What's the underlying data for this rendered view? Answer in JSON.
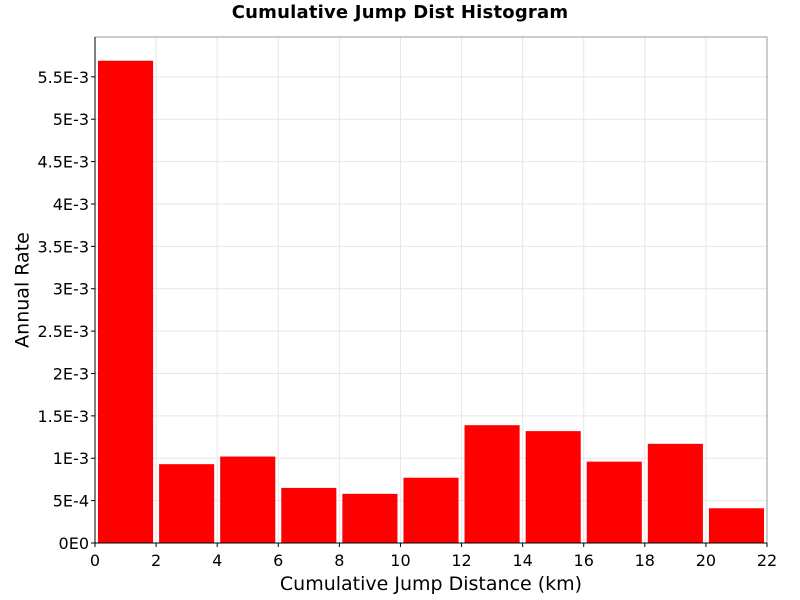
{
  "chart_data": {
    "type": "bar",
    "title": "Cumulative Jump Dist Histogram",
    "xlabel": "Cumulative Jump Distance (km)",
    "ylabel": "Annual Rate",
    "xlim": [
      0,
      22
    ],
    "ylim": [
      0,
      0.00597
    ],
    "grid": true,
    "legend": "none",
    "bar_color": "#ff0000",
    "bin_width": 2,
    "bins": [
      {
        "x_start": 0,
        "value": 0.00569
      },
      {
        "x_start": 2,
        "value": 0.00093
      },
      {
        "x_start": 4,
        "value": 0.00102
      },
      {
        "x_start": 6,
        "value": 0.00065
      },
      {
        "x_start": 8,
        "value": 0.00058
      },
      {
        "x_start": 10,
        "value": 0.00077
      },
      {
        "x_start": 12,
        "value": 0.00139
      },
      {
        "x_start": 14,
        "value": 0.00132
      },
      {
        "x_start": 16,
        "value": 0.00096
      },
      {
        "x_start": 18,
        "value": 0.00117
      },
      {
        "x_start": 20,
        "value": 0.00041
      }
    ],
    "x_ticks": [
      {
        "value": 0,
        "label": "0"
      },
      {
        "value": 2,
        "label": "2"
      },
      {
        "value": 4,
        "label": "4"
      },
      {
        "value": 6,
        "label": "6"
      },
      {
        "value": 8,
        "label": "8"
      },
      {
        "value": 10,
        "label": "10"
      },
      {
        "value": 12,
        "label": "12"
      },
      {
        "value": 14,
        "label": "14"
      },
      {
        "value": 16,
        "label": "16"
      },
      {
        "value": 18,
        "label": "18"
      },
      {
        "value": 20,
        "label": "20"
      },
      {
        "value": 22,
        "label": "22"
      }
    ],
    "y_ticks": [
      {
        "value": 0,
        "label": "0E0"
      },
      {
        "value": 0.0005,
        "label": "5E-4"
      },
      {
        "value": 0.001,
        "label": "1E-3"
      },
      {
        "value": 0.0015,
        "label": "1.5E-3"
      },
      {
        "value": 0.002,
        "label": "2E-3"
      },
      {
        "value": 0.0025,
        "label": "2.5E-3"
      },
      {
        "value": 0.003,
        "label": "3E-3"
      },
      {
        "value": 0.0035,
        "label": "3.5E-3"
      },
      {
        "value": 0.004,
        "label": "4E-3"
      },
      {
        "value": 0.0045,
        "label": "4.5E-3"
      },
      {
        "value": 0.005,
        "label": "5E-3"
      },
      {
        "value": 0.0055,
        "label": "5.5E-3"
      }
    ]
  }
}
